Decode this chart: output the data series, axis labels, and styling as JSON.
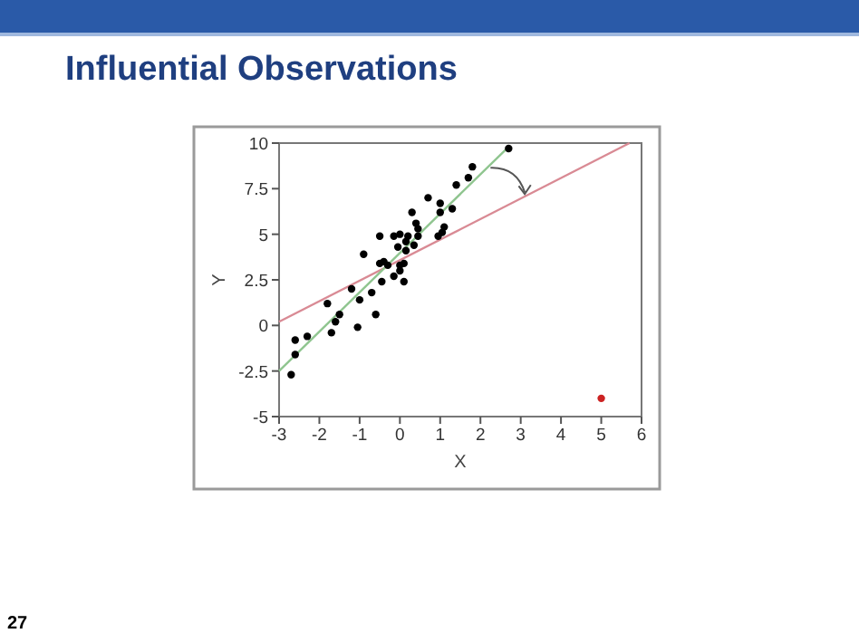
{
  "chart_data": {
    "type": "scatter",
    "title": "Influential Observations",
    "xlabel": "X",
    "ylabel": "Y",
    "annotations": [
      "27"
    ],
    "xlim": [
      -3,
      6
    ],
    "ylim": [
      -5,
      10
    ],
    "xticks": [
      -3,
      -2,
      -1,
      0,
      1,
      2,
      3,
      4,
      5,
      6
    ],
    "yticks": [
      -5,
      -2.5,
      0,
      2.5,
      5,
      7.5,
      10
    ],
    "grid": false,
    "marker": "circle",
    "series": [
      {
        "type": "line",
        "color": "#d98a94",
        "x": [
          -3,
          5.7
        ],
        "values": [
          0.2,
          10
        ],
        "marker": "none"
      },
      {
        "type": "line",
        "color": "#8fc58f",
        "x": [
          -3,
          2.7
        ],
        "values": [
          -2.5,
          9.8
        ],
        "marker": "none"
      },
      {
        "color": "#000000",
        "x": [
          -2.7,
          -2.6,
          -2.6,
          -2.3,
          -1.8,
          -1.7,
          -1.6,
          -1.5,
          -1.2,
          -1.05,
          -1,
          -0.9,
          -0.7,
          -0.6,
          -0.5,
          -0.45,
          -0.5,
          -0.4,
          -0.3,
          -0.15,
          -0.15,
          -0.05,
          0,
          0,
          0,
          0.1,
          0.1,
          0.15,
          0.15,
          0.2,
          0.3,
          0.35,
          0.4,
          0.45,
          0.45,
          0.7,
          0.95,
          1,
          1,
          1.05,
          1.1,
          1.3,
          1.4,
          1.7,
          1.8,
          2.7
        ],
        "values": [
          -2.7,
          -1.6,
          -0.8,
          -0.6,
          1.2,
          -0.4,
          0.2,
          0.6,
          2,
          -0.1,
          1.4,
          3.9,
          1.8,
          0.6,
          4.9,
          2.4,
          3.4,
          3.5,
          3.3,
          2.7,
          4.9,
          4.3,
          5,
          3.3,
          3,
          3.4,
          2.4,
          4.1,
          4.6,
          4.9,
          6.2,
          4.4,
          5.6,
          5.3,
          4.9,
          7,
          4.9,
          6.7,
          6.2,
          5.1,
          5.4,
          6.4,
          7.7,
          8.1,
          8.7,
          9.7
        ]
      },
      {
        "color": "#cc2222",
        "x": [
          5
        ],
        "values": [
          -4
        ]
      }
    ]
  }
}
